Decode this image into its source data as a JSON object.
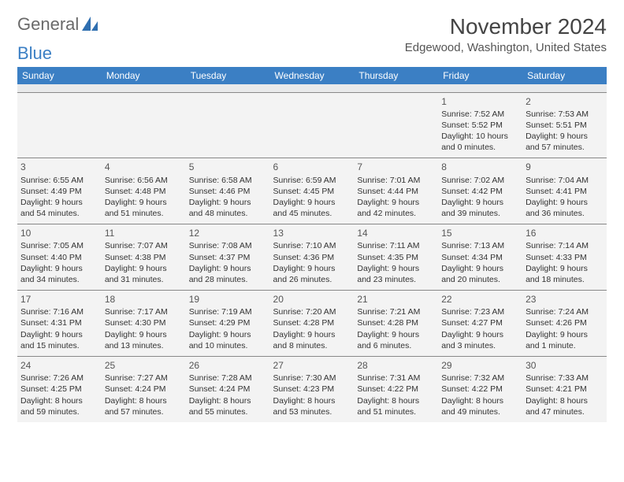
{
  "logo": {
    "text_general": "General",
    "text_blue": "Blue",
    "icon_color": "#2f6fb0"
  },
  "title": "November 2024",
  "location": "Edgewood, Washington, United States",
  "colors": {
    "header_bg": "#3b7fc4",
    "cell_bg": "#f3f3f3",
    "border": "#888888"
  },
  "weekdays": [
    "Sunday",
    "Monday",
    "Tuesday",
    "Wednesday",
    "Thursday",
    "Friday",
    "Saturday"
  ],
  "weeks": [
    [
      null,
      null,
      null,
      null,
      null,
      {
        "day": "1",
        "sunrise": "7:52 AM",
        "sunset": "5:52 PM",
        "daylight": "10 hours and 0 minutes."
      },
      {
        "day": "2",
        "sunrise": "7:53 AM",
        "sunset": "5:51 PM",
        "daylight": "9 hours and 57 minutes."
      }
    ],
    [
      {
        "day": "3",
        "sunrise": "6:55 AM",
        "sunset": "4:49 PM",
        "daylight": "9 hours and 54 minutes."
      },
      {
        "day": "4",
        "sunrise": "6:56 AM",
        "sunset": "4:48 PM",
        "daylight": "9 hours and 51 minutes."
      },
      {
        "day": "5",
        "sunrise": "6:58 AM",
        "sunset": "4:46 PM",
        "daylight": "9 hours and 48 minutes."
      },
      {
        "day": "6",
        "sunrise": "6:59 AM",
        "sunset": "4:45 PM",
        "daylight": "9 hours and 45 minutes."
      },
      {
        "day": "7",
        "sunrise": "7:01 AM",
        "sunset": "4:44 PM",
        "daylight": "9 hours and 42 minutes."
      },
      {
        "day": "8",
        "sunrise": "7:02 AM",
        "sunset": "4:42 PM",
        "daylight": "9 hours and 39 minutes."
      },
      {
        "day": "9",
        "sunrise": "7:04 AM",
        "sunset": "4:41 PM",
        "daylight": "9 hours and 36 minutes."
      }
    ],
    [
      {
        "day": "10",
        "sunrise": "7:05 AM",
        "sunset": "4:40 PM",
        "daylight": "9 hours and 34 minutes."
      },
      {
        "day": "11",
        "sunrise": "7:07 AM",
        "sunset": "4:38 PM",
        "daylight": "9 hours and 31 minutes."
      },
      {
        "day": "12",
        "sunrise": "7:08 AM",
        "sunset": "4:37 PM",
        "daylight": "9 hours and 28 minutes."
      },
      {
        "day": "13",
        "sunrise": "7:10 AM",
        "sunset": "4:36 PM",
        "daylight": "9 hours and 26 minutes."
      },
      {
        "day": "14",
        "sunrise": "7:11 AM",
        "sunset": "4:35 PM",
        "daylight": "9 hours and 23 minutes."
      },
      {
        "day": "15",
        "sunrise": "7:13 AM",
        "sunset": "4:34 PM",
        "daylight": "9 hours and 20 minutes."
      },
      {
        "day": "16",
        "sunrise": "7:14 AM",
        "sunset": "4:33 PM",
        "daylight": "9 hours and 18 minutes."
      }
    ],
    [
      {
        "day": "17",
        "sunrise": "7:16 AM",
        "sunset": "4:31 PM",
        "daylight": "9 hours and 15 minutes."
      },
      {
        "day": "18",
        "sunrise": "7:17 AM",
        "sunset": "4:30 PM",
        "daylight": "9 hours and 13 minutes."
      },
      {
        "day": "19",
        "sunrise": "7:19 AM",
        "sunset": "4:29 PM",
        "daylight": "9 hours and 10 minutes."
      },
      {
        "day": "20",
        "sunrise": "7:20 AM",
        "sunset": "4:28 PM",
        "daylight": "9 hours and 8 minutes."
      },
      {
        "day": "21",
        "sunrise": "7:21 AM",
        "sunset": "4:28 PM",
        "daylight": "9 hours and 6 minutes."
      },
      {
        "day": "22",
        "sunrise": "7:23 AM",
        "sunset": "4:27 PM",
        "daylight": "9 hours and 3 minutes."
      },
      {
        "day": "23",
        "sunrise": "7:24 AM",
        "sunset": "4:26 PM",
        "daylight": "9 hours and 1 minute."
      }
    ],
    [
      {
        "day": "24",
        "sunrise": "7:26 AM",
        "sunset": "4:25 PM",
        "daylight": "8 hours and 59 minutes."
      },
      {
        "day": "25",
        "sunrise": "7:27 AM",
        "sunset": "4:24 PM",
        "daylight": "8 hours and 57 minutes."
      },
      {
        "day": "26",
        "sunrise": "7:28 AM",
        "sunset": "4:24 PM",
        "daylight": "8 hours and 55 minutes."
      },
      {
        "day": "27",
        "sunrise": "7:30 AM",
        "sunset": "4:23 PM",
        "daylight": "8 hours and 53 minutes."
      },
      {
        "day": "28",
        "sunrise": "7:31 AM",
        "sunset": "4:22 PM",
        "daylight": "8 hours and 51 minutes."
      },
      {
        "day": "29",
        "sunrise": "7:32 AM",
        "sunset": "4:22 PM",
        "daylight": "8 hours and 49 minutes."
      },
      {
        "day": "30",
        "sunrise": "7:33 AM",
        "sunset": "4:21 PM",
        "daylight": "8 hours and 47 minutes."
      }
    ]
  ],
  "labels": {
    "sunrise": "Sunrise:",
    "sunset": "Sunset:",
    "daylight": "Daylight:"
  }
}
